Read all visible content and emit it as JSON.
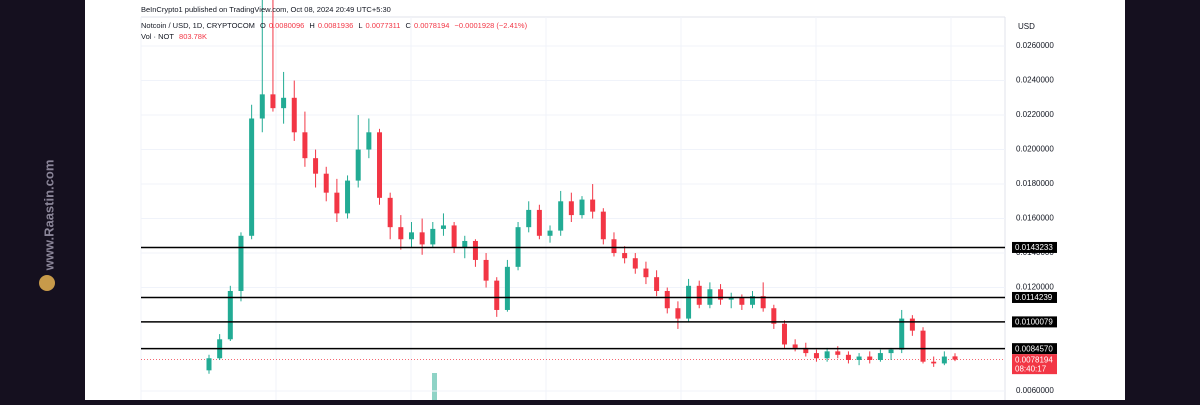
{
  "chart_data": {
    "type": "candlestick",
    "attribution": "BeInCrypto1 published on TradingView.com, Oct 08, 2024 20:49 UTC+5:30",
    "symbol": "Notcoin / USD, 1D, CRYPTOCOM",
    "legend_keys": [
      "O",
      "H",
      "L",
      "C"
    ],
    "change": "−0.0001928 (−2.41%)",
    "volume_label": "Vol · NOT",
    "volume_value": "803.78K",
    "currency": "USD",
    "countdown": "08:40:17",
    "watermark": "www.Raastin.com",
    "up_color": "#22ab94",
    "down_color": "#f23645",
    "level_color": "#000000",
    "ylim": [
      0.00548,
      0.02867
    ],
    "yticks": [
      {
        "value": 0.026,
        "label": "0.0260000"
      },
      {
        "value": 0.024,
        "label": "0.0240000"
      },
      {
        "value": 0.022,
        "label": "0.0220000"
      },
      {
        "value": 0.02,
        "label": "0.0200000"
      },
      {
        "value": 0.018,
        "label": "0.0180000"
      },
      {
        "value": 0.016,
        "label": "0.0160000"
      },
      {
        "value": 0.014,
        "label": "0.0140000"
      },
      {
        "value": 0.012,
        "label": "0.0120000"
      },
      {
        "value": 0.006,
        "label": "0.0060000"
      }
    ],
    "grid": true,
    "levels": [
      0.0143233,
      0.0114239,
      0.0100079,
      {
        "value": 0.008457,
        "label": "0.0084570"
      }
    ],
    "open": [
      0.0072,
      0.0079,
      0.009,
      0.0118,
      0.015,
      0.0218,
      0.0232,
      0.0224,
      0.023,
      0.021,
      0.0195,
      0.0186,
      0.0175,
      0.0163,
      0.0182,
      0.02,
      0.021,
      0.0172,
      0.0155,
      0.0148,
      0.0152,
      0.0145,
      0.0154,
      0.0156,
      0.0143,
      0.0147,
      0.0136,
      0.0124,
      0.0107,
      0.0132,
      0.0155,
      0.0165,
      0.015,
      0.0153,
      0.017,
      0.0162,
      0.0171,
      0.0164,
      0.0148,
      0.014,
      0.0137,
      0.0131,
      0.0126,
      0.0118,
      0.0108,
      0.0102,
      0.0121,
      0.011,
      0.0119,
      0.0113,
      0.0114,
      0.011,
      0.0115,
      0.0108,
      0.0099,
      0.0087,
      0.0085,
      0.0082,
      0.0079,
      0.0083,
      0.0081,
      0.0078,
      0.008,
      0.0078,
      0.0082,
      0.0084,
      0.0102,
      0.0095,
      0.0077,
      0.0076,
      0.0080096
    ],
    "high": [
      0.0081,
      0.0093,
      0.0121,
      0.0152,
      0.0226,
      0.0287,
      0.0287,
      0.0245,
      0.024,
      0.0222,
      0.02,
      0.019,
      0.0183,
      0.0185,
      0.022,
      0.0218,
      0.0212,
      0.0175,
      0.0162,
      0.0158,
      0.016,
      0.0158,
      0.0163,
      0.0158,
      0.015,
      0.0148,
      0.014,
      0.0126,
      0.0136,
      0.0158,
      0.017,
      0.0168,
      0.0156,
      0.0176,
      0.0175,
      0.0173,
      0.018,
      0.0166,
      0.0152,
      0.0144,
      0.014,
      0.0135,
      0.013,
      0.012,
      0.0112,
      0.0125,
      0.0124,
      0.0123,
      0.0122,
      0.0117,
      0.0116,
      0.0118,
      0.0123,
      0.011,
      0.0101,
      0.009,
      0.0088,
      0.0084,
      0.0085,
      0.0086,
      0.0083,
      0.0082,
      0.0083,
      0.0084,
      0.0085,
      0.0107,
      0.0104,
      0.0097,
      0.008,
      0.0083,
      0.0081936
    ],
    "low": [
      0.007,
      0.0078,
      0.0089,
      0.0112,
      0.0148,
      0.021,
      0.0222,
      0.0215,
      0.0205,
      0.019,
      0.0178,
      0.017,
      0.0158,
      0.016,
      0.0178,
      0.0195,
      0.0168,
      0.0148,
      0.0142,
      0.0143,
      0.0139,
      0.0143,
      0.015,
      0.014,
      0.0137,
      0.0132,
      0.012,
      0.0103,
      0.0106,
      0.013,
      0.0152,
      0.0148,
      0.0146,
      0.015,
      0.0158,
      0.016,
      0.016,
      0.0145,
      0.0138,
      0.0134,
      0.0128,
      0.0122,
      0.0115,
      0.0105,
      0.0096,
      0.01,
      0.0108,
      0.0108,
      0.011,
      0.0108,
      0.0107,
      0.0108,
      0.0106,
      0.0096,
      0.0085,
      0.0083,
      0.008,
      0.0077,
      0.0077,
      0.0079,
      0.0076,
      0.0075,
      0.0076,
      0.0077,
      0.0078,
      0.0082,
      0.0092,
      0.0076,
      0.0074,
      0.0075,
      0.0077311
    ],
    "close": [
      0.0079,
      0.009,
      0.0118,
      0.015,
      0.0218,
      0.0232,
      0.0224,
      0.023,
      0.021,
      0.0195,
      0.0186,
      0.0175,
      0.0163,
      0.0182,
      0.02,
      0.021,
      0.0172,
      0.0155,
      0.0148,
      0.0152,
      0.0145,
      0.0154,
      0.0156,
      0.0143,
      0.0147,
      0.0136,
      0.0124,
      0.0107,
      0.0132,
      0.0155,
      0.0165,
      0.015,
      0.0153,
      0.017,
      0.0162,
      0.0171,
      0.0164,
      0.0148,
      0.014,
      0.0137,
      0.0131,
      0.0126,
      0.0118,
      0.0108,
      0.0102,
      0.0121,
      0.011,
      0.0119,
      0.0113,
      0.0114,
      0.011,
      0.0115,
      0.0108,
      0.0099,
      0.0087,
      0.0085,
      0.0082,
      0.0079,
      0.0083,
      0.0081,
      0.0078,
      0.008,
      0.0078,
      0.0082,
      0.0084,
      0.0102,
      0.0095,
      0.0077,
      0.0076,
      0.008,
      0.0078194
    ]
  }
}
